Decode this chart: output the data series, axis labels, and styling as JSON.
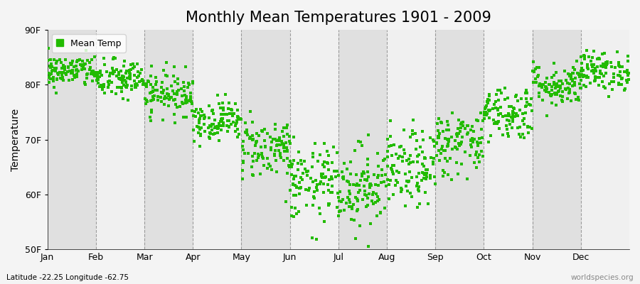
{
  "title": "Monthly Mean Temperatures 1901 - 2009",
  "ylabel": "Temperature",
  "xlabel_labels": [
    "Jan",
    "Feb",
    "Mar",
    "Apr",
    "May",
    "Jun",
    "Jul",
    "Aug",
    "Sep",
    "Oct",
    "Nov",
    "Dec"
  ],
  "ytick_labels": [
    "50F",
    "60F",
    "70F",
    "80F",
    "90F"
  ],
  "ytick_values": [
    50,
    60,
    70,
    80,
    90
  ],
  "ylim": [
    50,
    90
  ],
  "dot_color": "#22BB00",
  "background_color": "#f4f4f4",
  "plot_bg_color_light": "#f0f0f0",
  "plot_bg_color_dark": "#e0e0e0",
  "legend_label": "Mean Temp",
  "footnote_left": "Latitude -22.25 Longitude -62.75",
  "footnote_right": "worldspecies.org",
  "title_fontsize": 15,
  "label_fontsize": 10,
  "tick_fontsize": 9,
  "monthly_means": [
    82.5,
    81.0,
    78.5,
    73.5,
    68.5,
    62.0,
    61.5,
    64.5,
    69.5,
    75.0,
    80.0,
    82.5
  ],
  "monthly_stds": [
    1.5,
    1.8,
    2.0,
    1.8,
    2.8,
    3.5,
    3.8,
    3.5,
    3.0,
    2.5,
    2.0,
    1.8
  ],
  "num_years": 109,
  "seed": 42
}
